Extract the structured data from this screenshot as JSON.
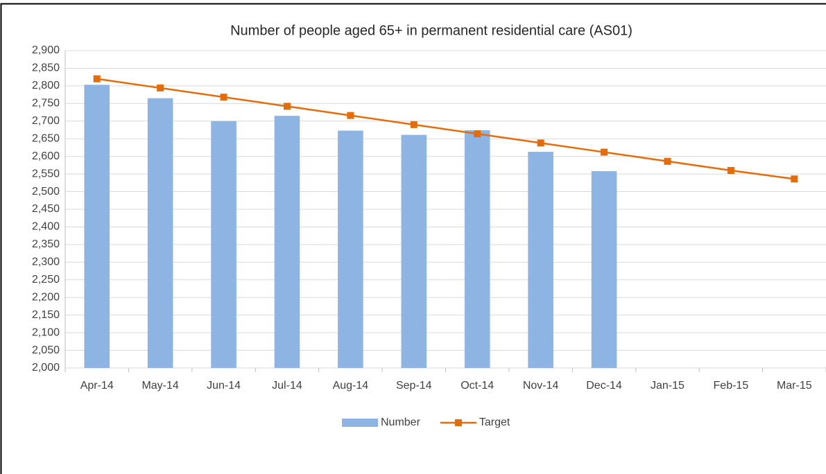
{
  "chart_data": {
    "type": "bar",
    "title": "Number of people aged 65+ in permanent residential care (AS01)",
    "categories": [
      "Apr-14",
      "May-14",
      "Jun-14",
      "Jul-14",
      "Aug-14",
      "Sep-14",
      "Oct-14",
      "Nov-14",
      "Dec-14",
      "Jan-15",
      "Feb-15",
      "Mar-15"
    ],
    "series": [
      {
        "name": "Number",
        "color": "#8db4e2",
        "type": "bar",
        "values": [
          2803,
          2765,
          2700,
          2715,
          2673,
          2661,
          2674,
          2613,
          2558,
          null,
          null,
          null
        ]
      },
      {
        "name": "Target",
        "color": "#e46c0a",
        "type": "line",
        "values": [
          2820,
          2794,
          2768,
          2742,
          2716,
          2690,
          2664,
          2638,
          2612,
          2586,
          2560,
          2536
        ]
      }
    ],
    "ylim": [
      2000,
      2900
    ],
    "yticks": [
      {
        "value": 2000,
        "label": "2,000"
      },
      {
        "value": 2050,
        "label": "2,050"
      },
      {
        "value": 2100,
        "label": "2,100"
      },
      {
        "value": 2150,
        "label": "2,150"
      },
      {
        "value": 2200,
        "label": "2,200"
      },
      {
        "value": 2250,
        "label": "2,250"
      },
      {
        "value": 2300,
        "label": "2,300"
      },
      {
        "value": 2350,
        "label": "2,350"
      },
      {
        "value": 2400,
        "label": "2,400"
      },
      {
        "value": 2450,
        "label": "2,450"
      },
      {
        "value": 2500,
        "label": "2,500"
      },
      {
        "value": 2550,
        "label": "2,550"
      },
      {
        "value": 2600,
        "label": "2,600"
      },
      {
        "value": 2650,
        "label": "2,650"
      },
      {
        "value": 2700,
        "label": "2,700"
      },
      {
        "value": 2750,
        "label": "2,750"
      },
      {
        "value": 2800,
        "label": "2,800"
      },
      {
        "value": 2850,
        "label": "2,850"
      },
      {
        "value": 2900,
        "label": "2,900"
      }
    ],
    "grid": true,
    "legend": "bottom"
  }
}
